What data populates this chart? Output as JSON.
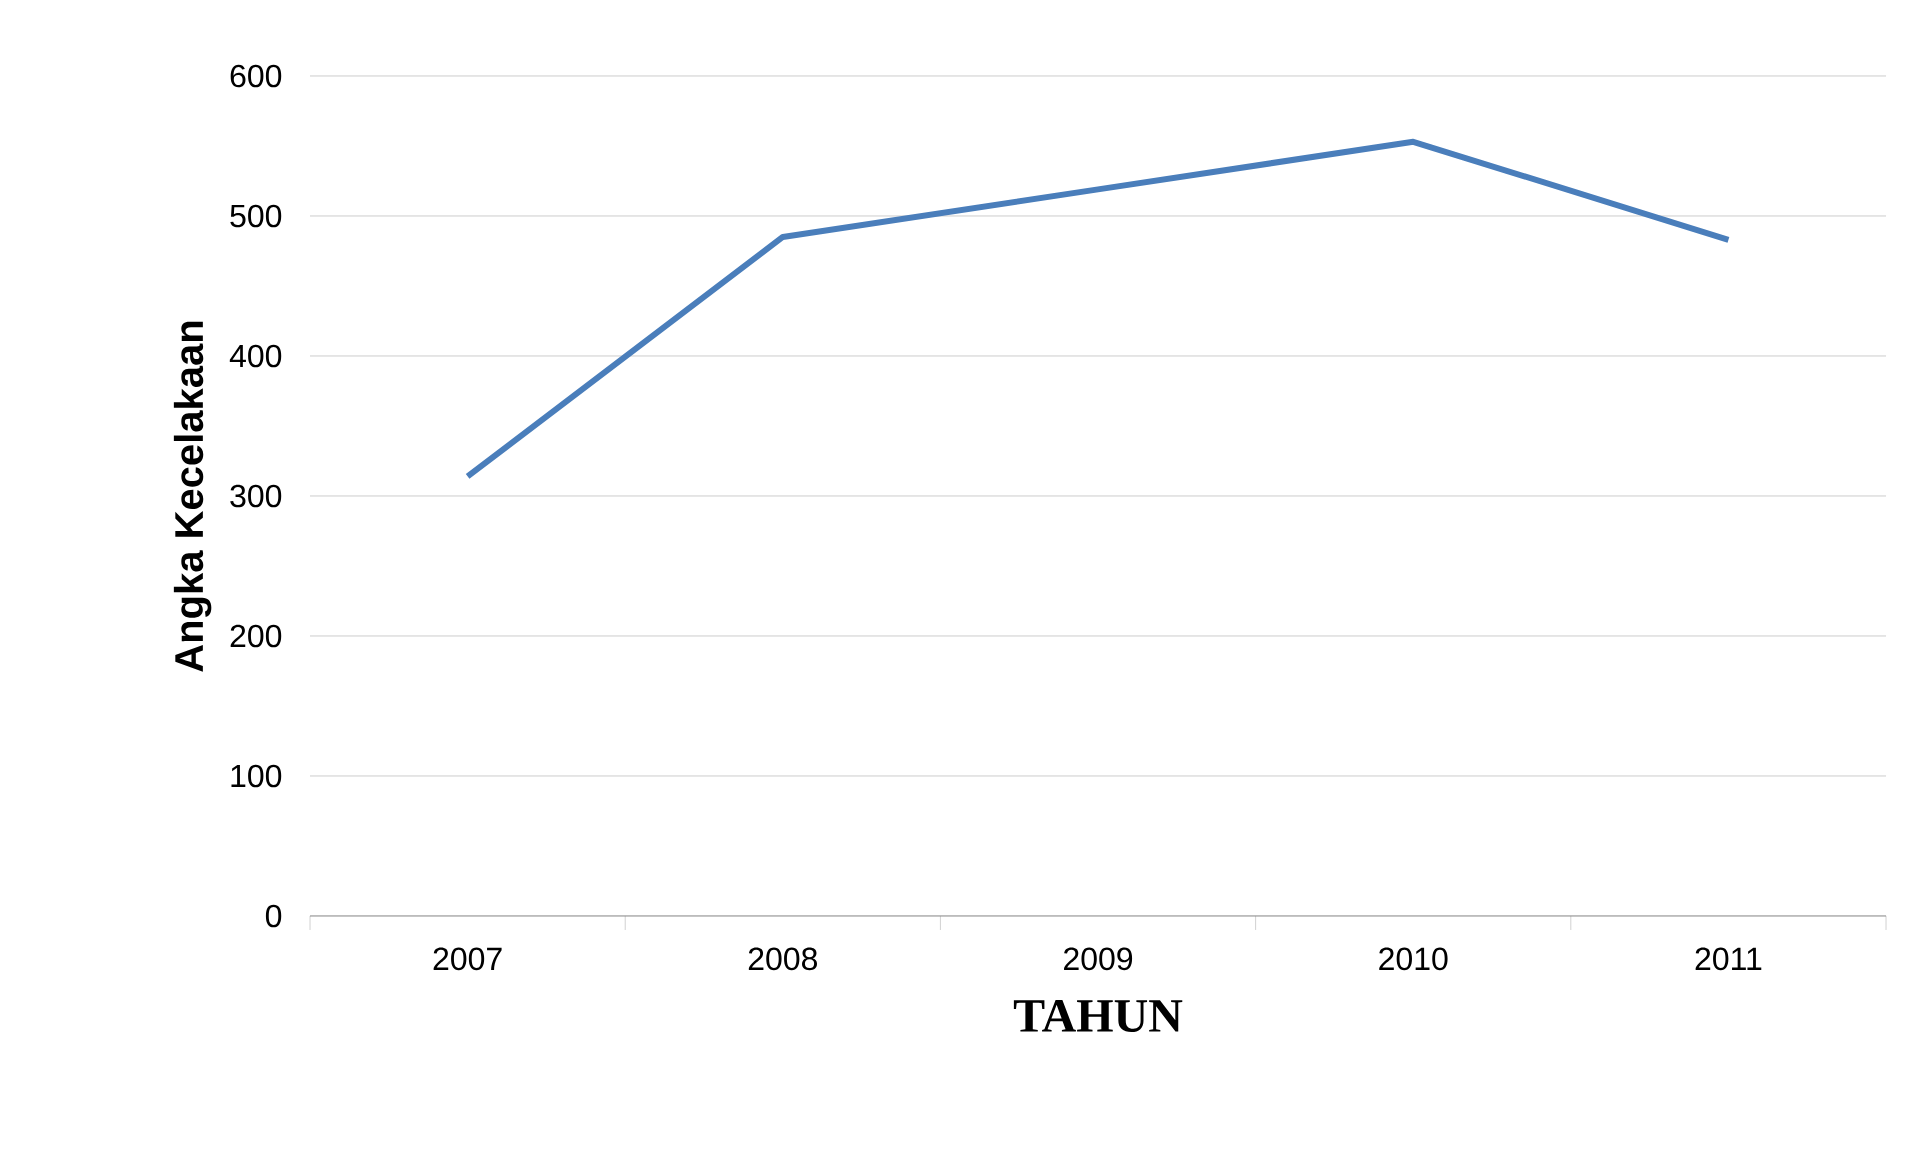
{
  "chart_data": {
    "type": "line",
    "xlabel": "TAHUN",
    "ylabel": "Angka Kecelakaan",
    "categories": [
      "2007",
      "2008",
      "2009",
      "2010",
      "2011"
    ],
    "series": [
      {
        "color": "#4a7ebb",
        "values": [
          314,
          485,
          519,
          553,
          483
        ]
      }
    ],
    "ylim": [
      0,
      600
    ],
    "yticks": [
      0,
      100,
      200,
      300,
      400,
      500,
      600
    ],
    "grid": "y",
    "marker": "none",
    "line_style": "solid"
  }
}
